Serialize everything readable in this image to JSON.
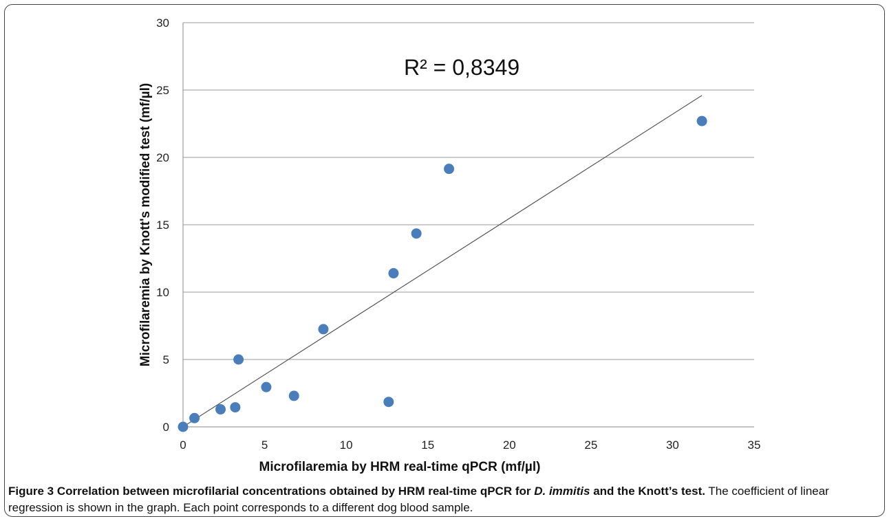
{
  "chart_data": {
    "type": "scatter",
    "xlabel": "Microfilaremia by HRM real-time qPCR (mf/µl)",
    "ylabel": "Microfilaremia by Knott's modified test  (mf/µl)",
    "xlim": [
      0,
      35
    ],
    "ylim": [
      0,
      30
    ],
    "x_ticks": [
      "0",
      "5",
      "10",
      "15",
      "20",
      "25",
      "30",
      "35"
    ],
    "y_ticks": [
      "0",
      "5",
      "10",
      "15",
      "20",
      "25",
      "30"
    ],
    "grid": "horizontal",
    "annotation": "R² = 0,8349",
    "points": [
      {
        "x": 0.0,
        "y": 0.0
      },
      {
        "x": 0.7,
        "y": 0.65
      },
      {
        "x": 2.3,
        "y": 1.3
      },
      {
        "x": 3.2,
        "y": 1.45
      },
      {
        "x": 3.4,
        "y": 5.0
      },
      {
        "x": 5.1,
        "y": 2.95
      },
      {
        "x": 6.8,
        "y": 2.3
      },
      {
        "x": 8.6,
        "y": 7.25
      },
      {
        "x": 12.6,
        "y": 1.85
      },
      {
        "x": 12.9,
        "y": 11.4
      },
      {
        "x": 14.3,
        "y": 14.35
      },
      {
        "x": 16.3,
        "y": 19.15
      },
      {
        "x": 31.8,
        "y": 22.7
      }
    ],
    "trendline": {
      "x0": 0,
      "y0": 0,
      "x1": 31.8,
      "y1": 24.6
    },
    "marker_color": "#4a7ebb",
    "trendline_color": "#555555"
  },
  "caption": {
    "label": "Figure 3",
    "title_part1": "Correlation between microfilarial concentrations obtained by HRM real-time qPCR for",
    "title_italic": "D. immitis",
    "title_part2": "and the Knott’s test.",
    "body": "The coefficient of linear regression is shown in the graph. Each point corresponds to a different dog blood sample."
  }
}
